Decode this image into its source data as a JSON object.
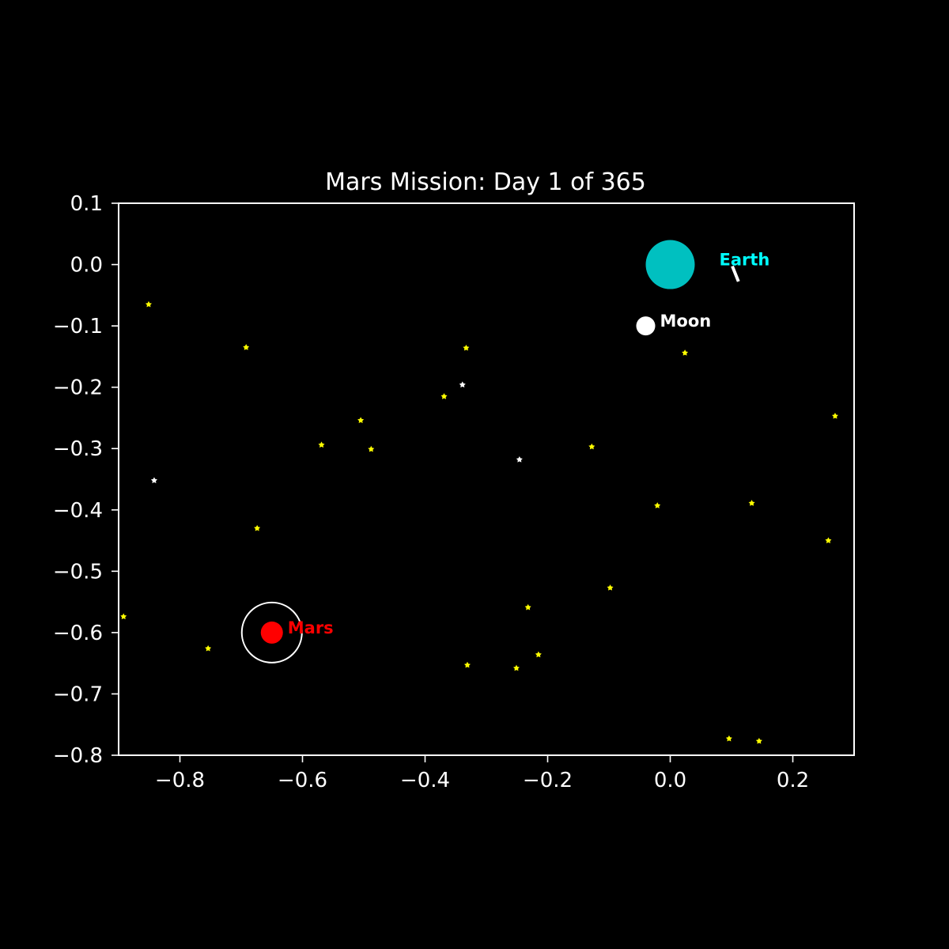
{
  "chart_data": {
    "type": "scatter",
    "title": "Mars Mission: Day 1 of 365",
    "xlabel": "",
    "ylabel": "",
    "xlim": [
      -0.9,
      0.3
    ],
    "ylim": [
      -0.8,
      0.1
    ],
    "xticks": [
      -0.8,
      -0.6,
      -0.4,
      -0.2,
      0.0,
      0.2
    ],
    "xtick_labels": [
      "−0.8",
      "−0.6",
      "−0.4",
      "−0.2",
      "0.0",
      "0.2"
    ],
    "yticks": [
      0.1,
      0.0,
      -0.1,
      -0.2,
      -0.3,
      -0.4,
      -0.5,
      -0.6,
      -0.7,
      -0.8
    ],
    "ytick_labels": [
      "0.1",
      "0.0",
      "−0.1",
      "−0.2",
      "−0.3",
      "−0.4",
      "−0.5",
      "−0.6",
      "−0.7",
      "−0.8"
    ],
    "grid": false,
    "background": "#000000",
    "bodies": [
      {
        "name": "Earth",
        "label": "Earth",
        "x": 0.0,
        "y": 0.0,
        "color": "#00c0c0",
        "label_color": "#00ffff",
        "size": "large"
      },
      {
        "name": "Moon",
        "label": "Moon",
        "x": -0.04,
        "y": -0.1,
        "color": "#ffffff",
        "label_color": "#ffffff",
        "size": "small"
      },
      {
        "name": "Mars",
        "label": "Mars",
        "x": -0.65,
        "y": -0.6,
        "color": "#ff0000",
        "label_color": "#ff0000",
        "size": "medium",
        "ring": true,
        "ring_color": "#ffffff"
      }
    ],
    "spacecraft": {
      "x1": 0.1,
      "y1": 0.0,
      "x2": 0.11,
      "y2": -0.025,
      "color": "#ffffff"
    },
    "stars": [
      {
        "x": -0.851,
        "y": -0.065,
        "color": "#ffff00"
      },
      {
        "x": -0.692,
        "y": -0.135,
        "color": "#ffff00"
      },
      {
        "x": -0.333,
        "y": -0.136,
        "color": "#ffff00"
      },
      {
        "x": -0.339,
        "y": -0.196,
        "color": "#ffffff"
      },
      {
        "x": -0.369,
        "y": -0.215,
        "color": "#ffff00"
      },
      {
        "x": -0.505,
        "y": -0.254,
        "color": "#ffff00"
      },
      {
        "x": -0.569,
        "y": -0.294,
        "color": "#ffff00"
      },
      {
        "x": -0.488,
        "y": -0.301,
        "color": "#ffff00"
      },
      {
        "x": -0.128,
        "y": -0.297,
        "color": "#ffff00"
      },
      {
        "x": -0.246,
        "y": -0.318,
        "color": "#ffffff"
      },
      {
        "x": 0.024,
        "y": -0.144,
        "color": "#ffff00"
      },
      {
        "x": 0.269,
        "y": -0.247,
        "color": "#ffff00"
      },
      {
        "x": -0.842,
        "y": -0.352,
        "color": "#ffffff"
      },
      {
        "x": -0.674,
        "y": -0.43,
        "color": "#ffff00"
      },
      {
        "x": -0.021,
        "y": -0.393,
        "color": "#ffff00"
      },
      {
        "x": 0.133,
        "y": -0.389,
        "color": "#ffff00"
      },
      {
        "x": 0.258,
        "y": -0.45,
        "color": "#ffff00"
      },
      {
        "x": -0.098,
        "y": -0.527,
        "color": "#ffff00"
      },
      {
        "x": -0.232,
        "y": -0.559,
        "color": "#ffff00"
      },
      {
        "x": -0.892,
        "y": -0.574,
        "color": "#ffff00"
      },
      {
        "x": -0.754,
        "y": -0.626,
        "color": "#ffff00"
      },
      {
        "x": -0.331,
        "y": -0.653,
        "color": "#ffff00"
      },
      {
        "x": -0.251,
        "y": -0.658,
        "color": "#ffff00"
      },
      {
        "x": -0.215,
        "y": -0.636,
        "color": "#ffff00"
      },
      {
        "x": 0.096,
        "y": -0.773,
        "color": "#ffff00"
      },
      {
        "x": 0.145,
        "y": -0.777,
        "color": "#ffff00"
      }
    ]
  }
}
